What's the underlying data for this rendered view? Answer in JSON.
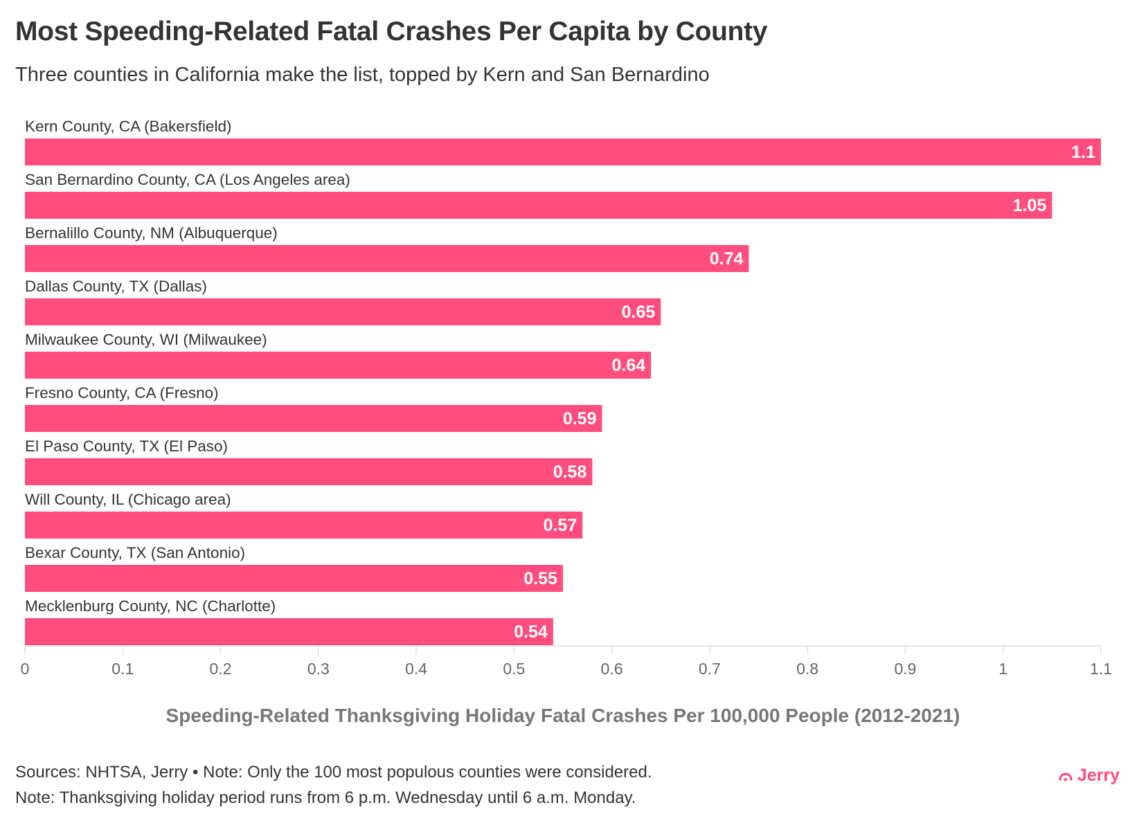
{
  "title": "Most Speeding-Related Fatal Crashes Per Capita by County",
  "subtitle": "Three counties in California make the list, topped by Kern and San Bernardino",
  "chart_data": {
    "type": "bar",
    "orientation": "horizontal",
    "categories": [
      "Kern County, CA (Bakersfield)",
      "San Bernardino County, CA (Los Angeles area)",
      "Bernalillo County, NM (Albuquerque)",
      "Dallas County, TX (Dallas)",
      "Milwaukee County, WI (Milwaukee)",
      "Fresno County, CA (Fresno)",
      "El Paso County, TX (El Paso)",
      "Will County, IL (Chicago area)",
      "Bexar County, TX (San Antonio)",
      "Mecklenburg County, NC (Charlotte)"
    ],
    "values": [
      1.1,
      1.05,
      0.74,
      0.65,
      0.64,
      0.59,
      0.58,
      0.57,
      0.55,
      0.54
    ],
    "data_labels": [
      "1.1",
      "1.05",
      "0.74",
      "0.65",
      "0.64",
      "0.59",
      "0.58",
      "0.57",
      "0.55",
      "0.54"
    ],
    "xlabel": "Speeding-Related Thanksgiving Holiday Fatal Crashes Per 100,000 People (2012-2021)",
    "xlim": [
      0,
      1.1
    ],
    "xticks": [
      "0",
      "0.1",
      "0.2",
      "0.3",
      "0.4",
      "0.5",
      "0.6",
      "0.7",
      "0.8",
      "0.9",
      "1",
      "1.1"
    ],
    "grid": false,
    "bar_color": "#ff4d7e"
  },
  "footer": {
    "line1": "Sources: NHTSA, Jerry • Note: Only the 100 most populous counties were considered.",
    "line2": "Note: Thanksgiving holiday period runs from 6 p.m. Wednesday until 6 a.m. Monday."
  },
  "logo": {
    "text": "Jerry",
    "color": "#ff4a7d"
  }
}
